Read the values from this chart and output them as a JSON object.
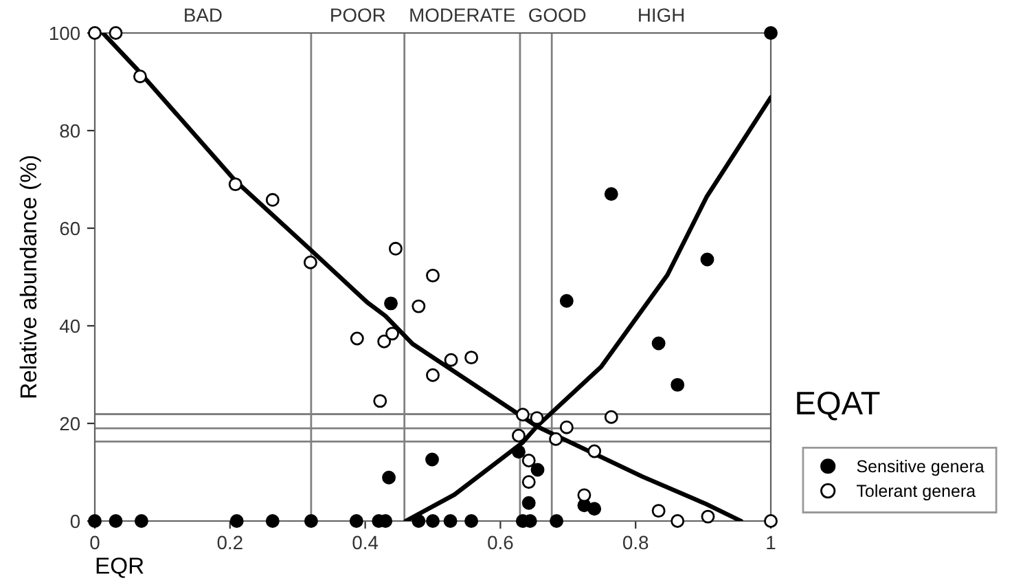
{
  "chart_data": {
    "type": "scatter",
    "xlabel": "EQR",
    "ylabel": "Relative abundance (%)",
    "xlim": [
      0,
      1
    ],
    "ylim": [
      0,
      100
    ],
    "xticks": [
      0,
      0.2,
      0.4,
      0.6,
      0.8,
      1
    ],
    "yticks": [
      0,
      20,
      40,
      60,
      80,
      100
    ],
    "grid": false,
    "legend": "right",
    "annotations": [
      "BAD",
      "POOR",
      "MODERATE",
      "GOOD",
      "HIGH"
    ],
    "series": [
      {
        "name": "Sensitive genera",
        "marker": "circle",
        "color": "#000000",
        "x": [
          0,
          0.031,
          0.069,
          0.21,
          0.263,
          0.32,
          0.387,
          0.42,
          0.43,
          0.479,
          0.5,
          0.526,
          0.557,
          0.633,
          0.644,
          0.683,
          0.438,
          0.435,
          0.499,
          0.698,
          0.834,
          0.862,
          0.627,
          0.655,
          0.642,
          0.724,
          0.739,
          1.0,
          0.764,
          0.906
        ],
        "values": [
          0,
          0,
          0,
          0,
          0,
          0,
          0,
          0,
          0,
          0,
          0,
          0,
          0,
          0,
          0,
          0,
          44.6,
          8.9,
          12.6,
          45.1,
          36.4,
          27.9,
          14.2,
          10.5,
          3.7,
          3.2,
          2.5,
          100,
          67.0,
          53.6
        ]
      },
      {
        "name": "Tolerant genera",
        "marker": "circle",
        "color": "#ffffff",
        "x": [
          0,
          0.031,
          0.067,
          0.208,
          0.263,
          0.319,
          0.445,
          0.5,
          0.388,
          0.428,
          0.44,
          0.422,
          0.479,
          0.527,
          0.557,
          0.5,
          0.633,
          0.654,
          0.627,
          0.682,
          0.698,
          0.764,
          0.739,
          0.642,
          0.642,
          0.724,
          0.834,
          0.862,
          0.907,
          1.0
        ],
        "values": [
          100,
          100,
          91.1,
          69.0,
          65.8,
          53.0,
          55.8,
          50.3,
          37.4,
          36.8,
          38.4,
          24.6,
          44.0,
          33.0,
          33.5,
          29.9,
          21.8,
          21.1,
          17.5,
          16.8,
          19.2,
          21.3,
          14.3,
          12.4,
          8.0,
          5.3,
          2.1,
          0,
          0.9,
          0
        ]
      },
      {
        "type": "line",
        "color": "#000000",
        "x": [
          0.012,
          0.063,
          0.208,
          0.319,
          0.403,
          0.43,
          0.47,
          0.654,
          0.81,
          0.904,
          0.956
        ],
        "values": [
          100,
          92.5,
          69.7,
          55.6,
          44.8,
          42.0,
          36.3,
          19.4,
          9.1,
          3.5,
          0
        ]
      },
      {
        "type": "line",
        "color": "#000000",
        "x": [
          0.46,
          0.532,
          0.633,
          0.654,
          0.749,
          0.847,
          0.905,
          1.0
        ],
        "values": [
          0,
          5.4,
          16.1,
          19.4,
          31.6,
          50.4,
          66.4,
          86.8
        ]
      }
    ],
    "ref_lines": [
      {
        "axis": "x",
        "value": 0.32,
        "color": "#808080"
      },
      {
        "axis": "x",
        "value": 0.458,
        "color": "#808080"
      },
      {
        "axis": "x",
        "value": 0.629,
        "color": "#808080"
      },
      {
        "axis": "x",
        "value": 0.676,
        "color": "#808080"
      },
      {
        "axis": "y",
        "value": 21.9,
        "color": "#808080"
      },
      {
        "axis": "y",
        "value": 19.0,
        "label": "EQAT",
        "color": "#808080"
      },
      {
        "axis": "y",
        "value": 16.3,
        "color": "#808080"
      }
    ]
  }
}
